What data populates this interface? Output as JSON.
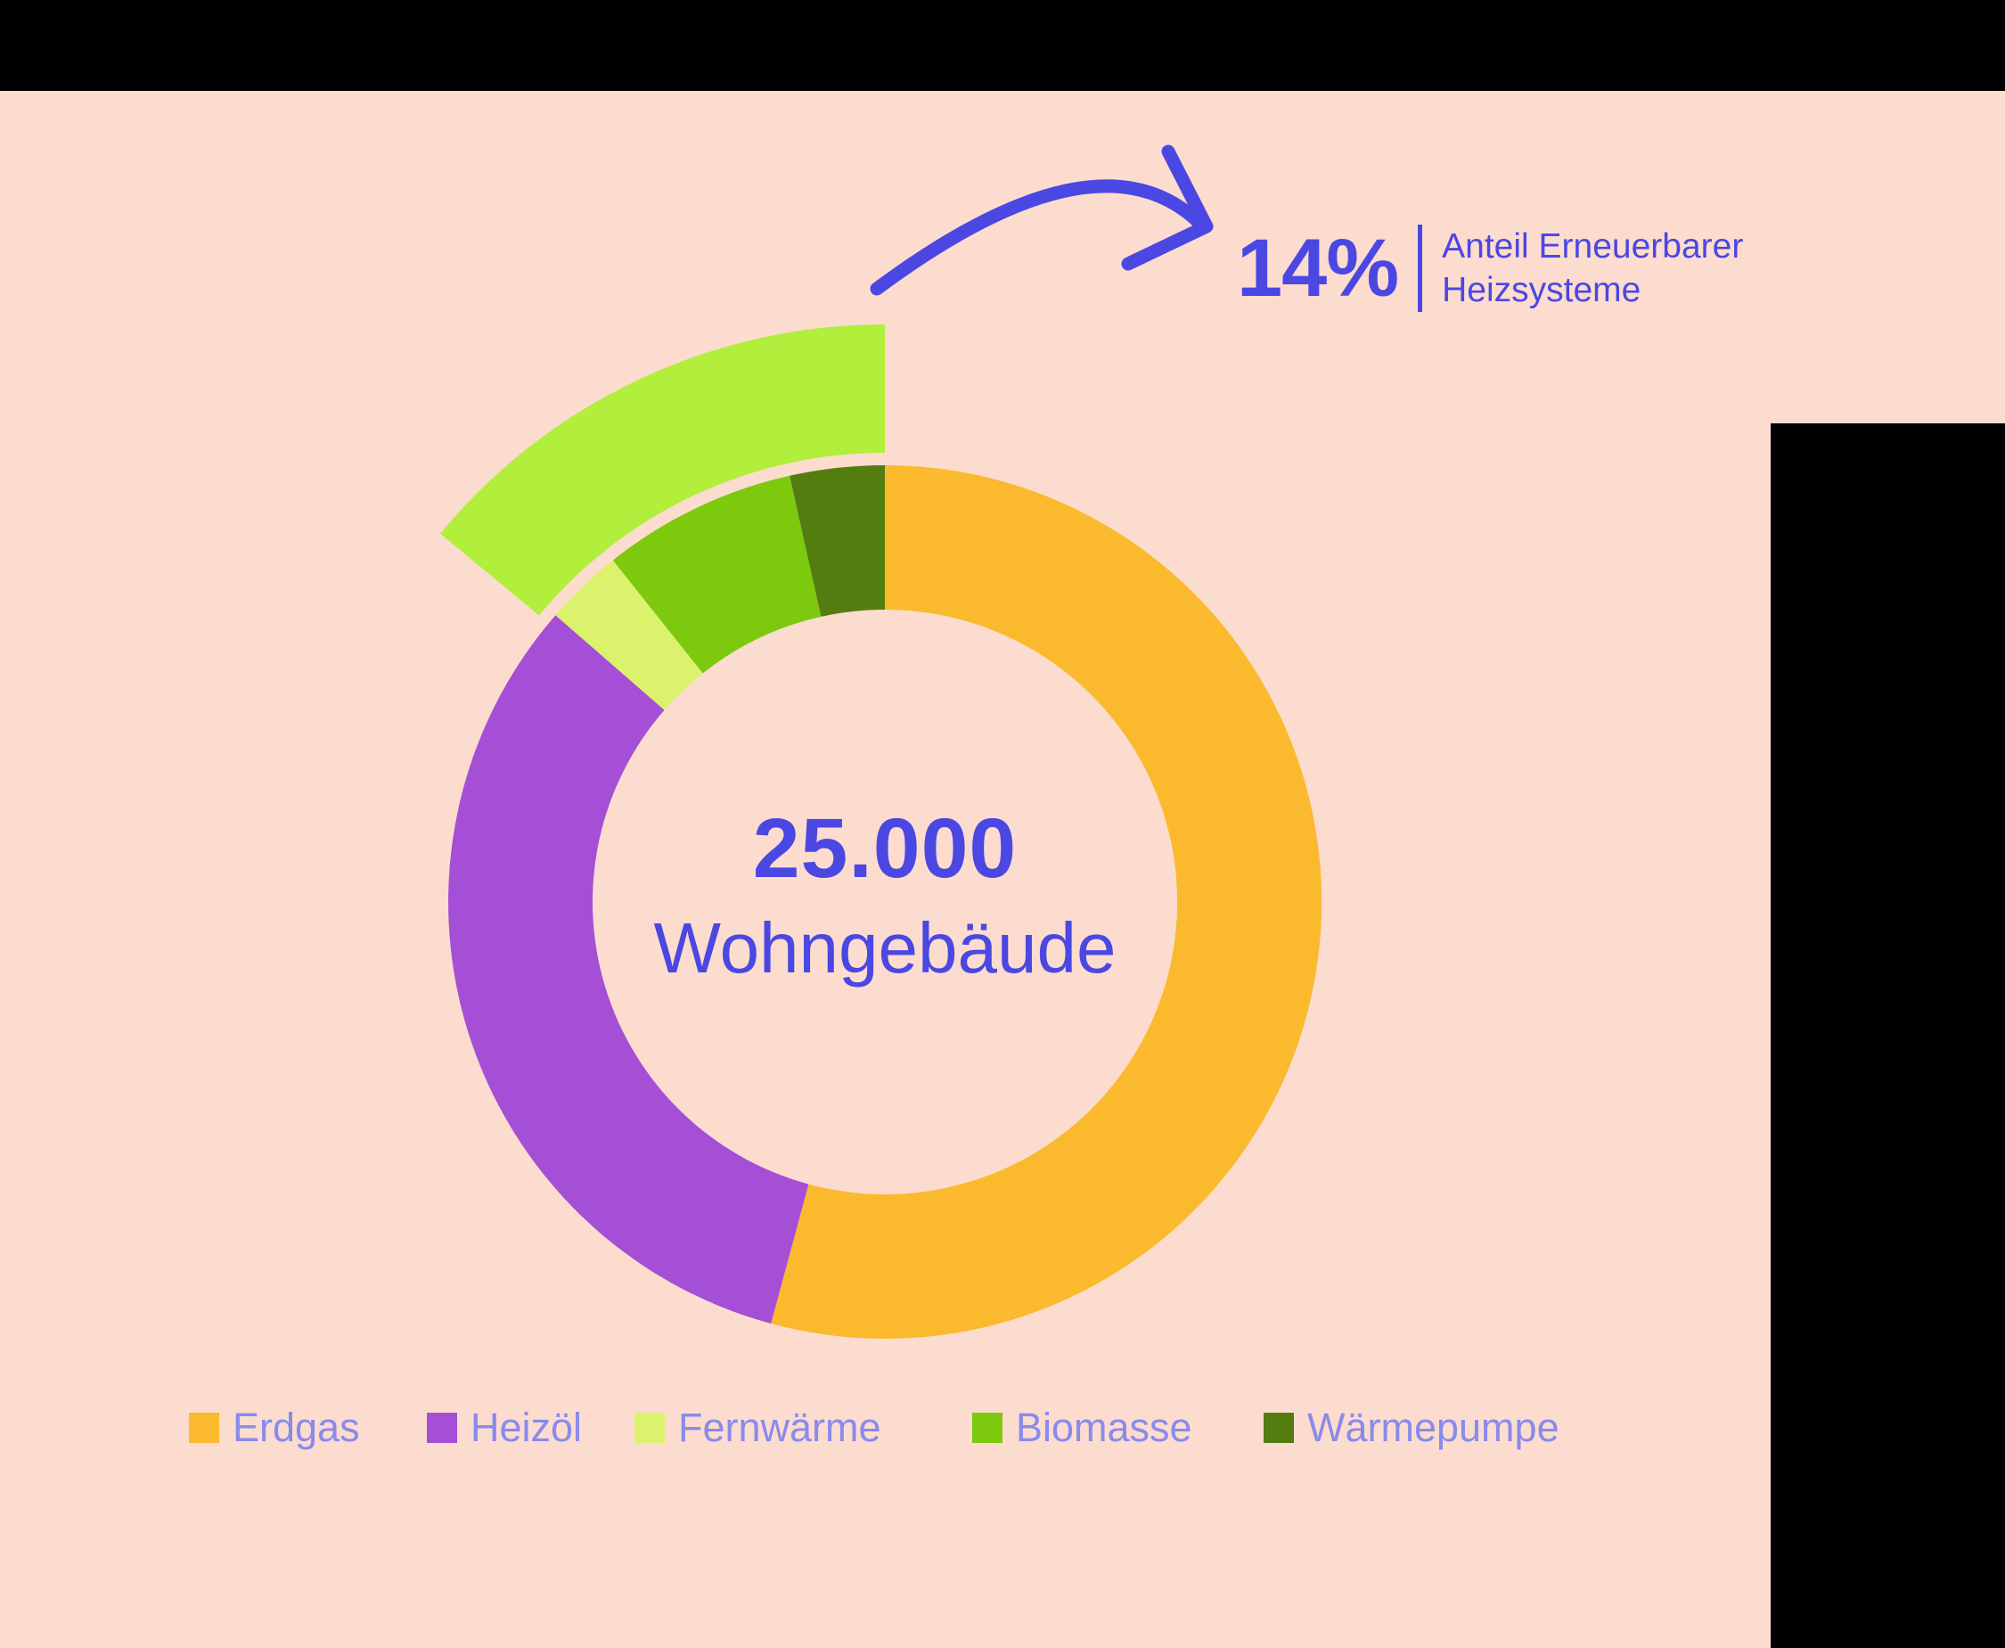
{
  "colors": {
    "background_peach": "#FCDCCE",
    "frame_black": "#000000",
    "accent_blue": "#4B47E2",
    "legend_text": "#898AEC"
  },
  "callout": {
    "value": "14%",
    "label_line1": "Anteil Erneuerbarer",
    "label_line2": "Heizsysteme"
  },
  "center": {
    "value": "25.000",
    "label": "Wohngebäude"
  },
  "chart_data": {
    "type": "pie",
    "variant": "donut",
    "title": "",
    "center_value": "25.000",
    "center_label": "Wohngebäude",
    "legend_position": "bottom",
    "start_angle_deg": 0,
    "direction": "clockwise",
    "segments": [
      {
        "id": "erdgas",
        "label": "Erdgas",
        "percent": 54.2,
        "color": "#FBB92E"
      },
      {
        "id": "heizoel",
        "label": "Heizöl",
        "percent": 32.2,
        "color": "#A44FD6"
      },
      {
        "id": "fernwaerme",
        "label": "Fernwärme",
        "percent": 2.9,
        "color": "#DCF26C"
      },
      {
        "id": "biomasse",
        "label": "Biomasse",
        "percent": 7.2,
        "color": "#7CC90E"
      },
      {
        "id": "waermepumpe",
        "label": "Wärmepumpe",
        "percent": 3.5,
        "color": "#547D0F"
      }
    ],
    "highlight": {
      "label": "Anteil Erneuerbarer Heizsysteme",
      "value_text": "14%",
      "percent": 13.6,
      "color": "#B2EE3C",
      "covers_segments": [
        "fernwaerme",
        "biomasse",
        "waermepumpe"
      ]
    }
  }
}
